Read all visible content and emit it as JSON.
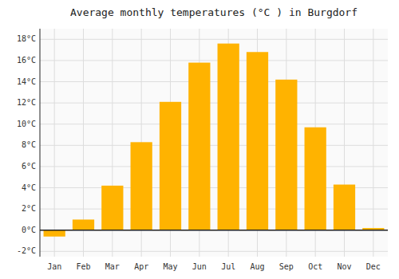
{
  "chart_data": {
    "type": "bar",
    "title": "Average monthly temperatures (°C ) in Burgdorf",
    "categories": [
      "Jan",
      "Feb",
      "Mar",
      "Apr",
      "May",
      "Jun",
      "Jul",
      "Aug",
      "Sep",
      "Oct",
      "Nov",
      "Dec"
    ],
    "values": [
      -0.6,
      1.0,
      4.2,
      8.3,
      12.1,
      15.8,
      17.6,
      16.8,
      14.2,
      9.7,
      4.3,
      0.2
    ],
    "color": "#FFB300",
    "ylim": [
      -2.5,
      19
    ],
    "yticks": [
      {
        "value": -2,
        "label": "-2°C"
      },
      {
        "value": 0,
        "label": "0°C"
      },
      {
        "value": 2,
        "label": "2°C"
      },
      {
        "value": 4,
        "label": "4°C"
      },
      {
        "value": 6,
        "label": "6°C"
      },
      {
        "value": 8,
        "label": "8°C"
      },
      {
        "value": 10,
        "label": "10°C"
      },
      {
        "value": 12,
        "label": "12°C"
      },
      {
        "value": 14,
        "label": "14°C"
      },
      {
        "value": 16,
        "label": "16°C"
      },
      {
        "value": 18,
        "label": "18°C"
      }
    ],
    "grid": true
  }
}
